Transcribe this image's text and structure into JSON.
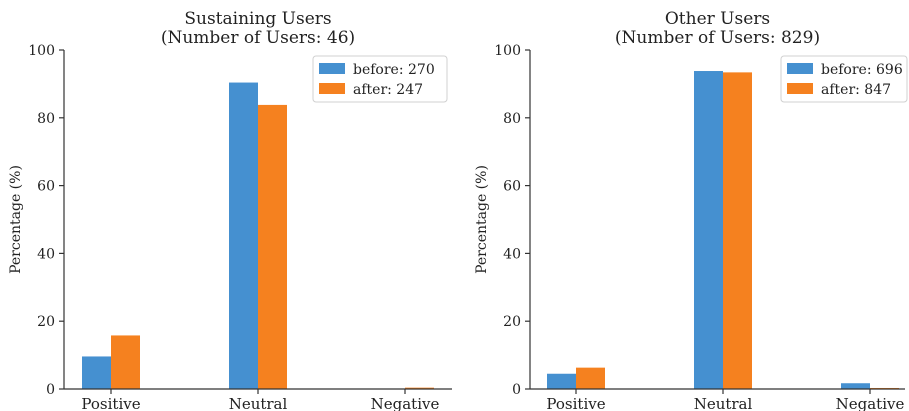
{
  "chart_data": [
    {
      "type": "bar",
      "title_lines": [
        "Sustaining Users",
        "(Number of Users: 46)"
      ],
      "xlabel": "",
      "ylabel": "Percentage (%)",
      "ylim": [
        0,
        100
      ],
      "yticks": [
        0,
        20,
        40,
        60,
        80,
        100
      ],
      "categories": [
        "Positive",
        "Neutral",
        "Negative"
      ],
      "legend_position": "top-right",
      "grid": false,
      "series": [
        {
          "name": "before: 270",
          "color": "#4590d0",
          "values": [
            9.6,
            90.4,
            0
          ]
        },
        {
          "name": "after: 247",
          "color": "#f5811f",
          "values": [
            15.8,
            83.8,
            0.4
          ]
        }
      ]
    },
    {
      "type": "bar",
      "title_lines": [
        "Other Users",
        "(Number of Users: 829)"
      ],
      "xlabel": "",
      "ylabel": "Percentage (%)",
      "ylim": [
        0,
        100
      ],
      "yticks": [
        0,
        20,
        40,
        60,
        80,
        100
      ],
      "categories": [
        "Positive",
        "Neutral",
        "Negative"
      ],
      "legend_position": "top-right",
      "grid": false,
      "series": [
        {
          "name": "before: 696",
          "color": "#4590d0",
          "values": [
            4.5,
            93.8,
            1.7
          ]
        },
        {
          "name": "after: 847",
          "color": "#f5811f",
          "values": [
            6.3,
            93.4,
            0.3
          ]
        }
      ]
    }
  ]
}
